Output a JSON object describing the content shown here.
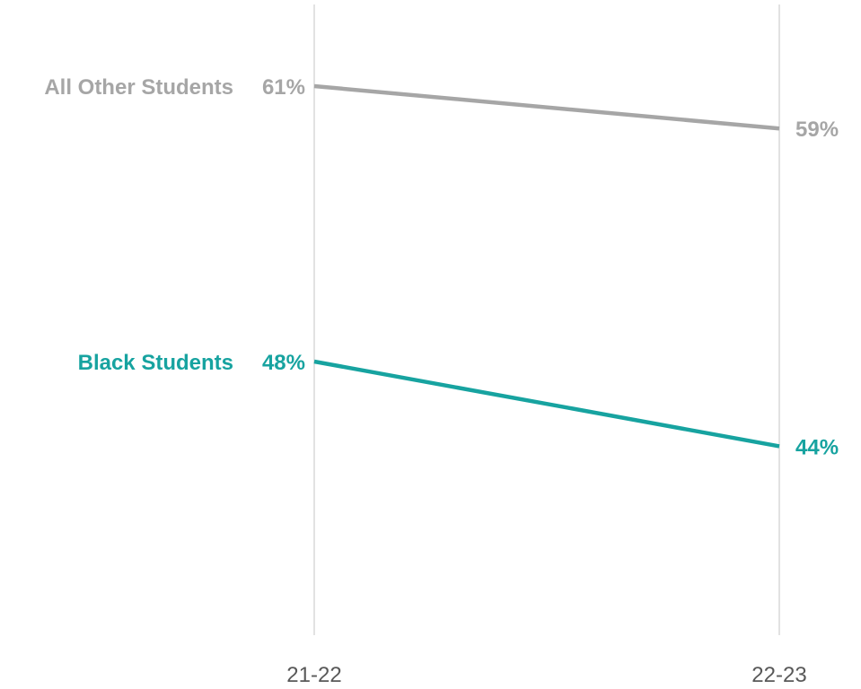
{
  "chart_data": {
    "type": "line",
    "title": "",
    "xlabel": "",
    "ylabel": "",
    "x": [
      "21-22",
      "22-23"
    ],
    "series": [
      {
        "name": "All Other Students",
        "values": [
          61,
          59
        ],
        "labels": [
          "61%",
          "59%"
        ],
        "color": "#a6a6a6"
      },
      {
        "name": "Black Students",
        "values": [
          48,
          44
        ],
        "labels": [
          "48%",
          "44%"
        ],
        "color": "#17a3a0"
      }
    ],
    "gridlines": "vertical",
    "gridline_color": "#d9d9d9",
    "legend": "none"
  }
}
